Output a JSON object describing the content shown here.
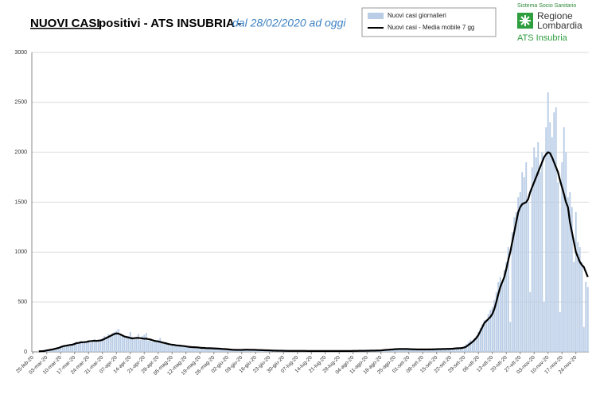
{
  "chart_data": {
    "type": "bar",
    "title": "NUOVI CASI",
    "title_rest": "positivi - ATS INSUBRIA -",
    "subtitle": "dal 28/02/2020 ad oggi",
    "logo": {
      "top": "Sistema Socio Sanitario",
      "line1": "Regione",
      "line2": "Lombardia",
      "bottom": "ATS Insubria"
    },
    "ylim": [
      0,
      3000
    ],
    "yticks": [
      0,
      500,
      1000,
      1500,
      2000,
      2500,
      3000
    ],
    "grid": true,
    "categories": [
      "25-feb-20",
      null,
      null,
      null,
      null,
      null,
      null,
      "03-mar-20",
      null,
      null,
      null,
      null,
      null,
      null,
      "10-mar-20",
      null,
      null,
      null,
      null,
      null,
      null,
      "17-mar-20",
      null,
      null,
      null,
      null,
      null,
      null,
      "24-mar-20",
      null,
      null,
      null,
      null,
      null,
      null,
      "31-mar-20",
      null,
      null,
      null,
      null,
      null,
      null,
      "07-apr-20",
      null,
      null,
      null,
      null,
      null,
      null,
      "14-apr-20",
      null,
      null,
      null,
      null,
      null,
      null,
      "21-apr-20",
      null,
      null,
      null,
      null,
      null,
      null,
      "28-apr-20",
      null,
      null,
      null,
      null,
      null,
      null,
      "05-mag-20",
      null,
      null,
      null,
      null,
      null,
      null,
      "12-mag-20",
      null,
      null,
      null,
      null,
      null,
      null,
      "19-mag-20",
      null,
      null,
      null,
      null,
      null,
      null,
      "26-mag-20",
      null,
      null,
      null,
      null,
      null,
      null,
      "02-giu-20",
      null,
      null,
      null,
      null,
      null,
      null,
      "09-giu-20",
      null,
      null,
      null,
      null,
      null,
      null,
      "16-giu-20",
      null,
      null,
      null,
      null,
      null,
      null,
      "23-giu-20",
      null,
      null,
      null,
      null,
      null,
      null,
      "30-giu-20",
      null,
      null,
      null,
      null,
      null,
      null,
      "07-lug-20",
      null,
      null,
      null,
      null,
      null,
      null,
      "14-lug-20",
      null,
      null,
      null,
      null,
      null,
      null,
      "21-lug-20",
      null,
      null,
      null,
      null,
      null,
      null,
      "28-lug-20",
      null,
      null,
      null,
      null,
      null,
      null,
      "04-ago-20",
      null,
      null,
      null,
      null,
      null,
      null,
      "11-ago-20",
      null,
      null,
      null,
      null,
      null,
      null,
      "18-ago-20",
      null,
      null,
      null,
      null,
      null,
      null,
      "25-ago-20",
      null,
      null,
      null,
      null,
      null,
      null,
      "01-set-20",
      null,
      null,
      null,
      null,
      null,
      null,
      "08-set-20",
      null,
      null,
      null,
      null,
      null,
      null,
      "15-set-20",
      null,
      null,
      null,
      null,
      null,
      null,
      "22-set-20",
      null,
      null,
      null,
      null,
      null,
      null,
      "29-set-20",
      null,
      null,
      null,
      null,
      null,
      null,
      "06-ott-20",
      null,
      null,
      null,
      null,
      null,
      null,
      "13-ott-20",
      null,
      null,
      null,
      null,
      null,
      null,
      "20-ott-20",
      null,
      null,
      null,
      null,
      null,
      null,
      "27-ott-20",
      null,
      null,
      null,
      null,
      null,
      null,
      "03-nov-20",
      null,
      null,
      null,
      null,
      null,
      null,
      "10-nov-20",
      null,
      null,
      null,
      null,
      null,
      null,
      "17-nov-20",
      null,
      null,
      null,
      null,
      null,
      null,
      "24-nov-20",
      null,
      null,
      null,
      null,
      null,
      null
    ],
    "series": [
      {
        "name": "Nuovi casi giornalieri",
        "type": "bar",
        "color": "#b9cde6",
        "values": [
          null,
          null,
          null,
          5,
          8,
          10,
          12,
          15,
          20,
          25,
          30,
          35,
          40,
          45,
          50,
          60,
          55,
          70,
          75,
          65,
          80,
          90,
          100,
          85,
          110,
          95,
          105,
          100,
          120,
          90,
          110,
          130,
          100,
          115,
          125,
          140,
          160,
          150,
          180,
          170,
          190,
          200,
          210,
          230,
          180,
          170,
          150,
          140,
          160,
          200,
          150,
          130,
          140,
          180,
          120,
          160,
          170,
          190,
          110,
          130,
          100,
          120,
          110,
          120,
          140,
          90,
          80,
          100,
          70,
          60,
          80,
          70,
          60,
          55,
          75,
          60,
          50,
          55,
          45,
          50,
          40,
          60,
          35,
          45,
          40,
          35,
          45,
          30,
          38,
          42,
          30,
          35,
          30,
          28,
          32,
          25,
          30,
          20,
          18,
          22,
          25,
          20,
          15,
          22,
          18,
          25,
          30,
          20,
          22,
          18,
          15,
          20,
          18,
          20,
          15,
          22,
          12,
          16,
          14,
          12,
          15,
          10,
          14,
          11,
          13,
          10,
          10,
          12,
          8,
          11,
          9,
          10,
          12,
          10,
          9,
          8,
          12,
          10,
          7,
          9,
          8,
          10,
          9,
          7,
          11,
          8,
          9,
          10,
          8,
          9,
          11,
          7,
          10,
          9,
          8,
          10,
          9,
          8,
          11,
          9,
          10,
          11,
          9,
          12,
          10,
          13,
          11,
          12,
          12,
          14,
          13,
          15,
          12,
          14,
          16,
          18,
          20,
          22,
          25,
          24,
          28,
          26,
          30,
          28,
          32,
          29,
          26,
          30,
          28,
          26,
          24,
          28,
          22,
          25,
          27,
          23,
          25,
          22,
          28,
          24,
          26,
          30,
          27,
          28,
          30,
          26,
          32,
          29,
          35,
          30,
          35,
          32,
          38,
          40,
          36,
          42,
          45,
          60,
          80,
          100,
          120,
          110,
          140,
          160,
          200,
          240,
          280,
          320,
          300,
          380,
          420,
          450,
          520,
          600,
          700,
          750,
          680,
          820,
          900,
          1050,
          300,
          1200,
          1350,
          1400,
          1550,
          1600,
          1800,
          1750,
          1900,
          1500,
          600,
          1850,
          2050,
          1950,
          2100,
          1800,
          2000,
          500,
          2250,
          2600,
          2300,
          2150,
          2400,
          2450,
          1700,
          400,
          1900,
          2250,
          2000,
          1550,
          1600,
          1450,
          900,
          1400,
          1100,
          1050,
          900,
          250,
          700,
          650
        ]
      },
      {
        "name": "Nuovi casi - Media mobile 7 gg",
        "type": "line",
        "color": "#000000",
        "values": [
          null,
          null,
          null,
          5,
          7,
          8,
          10,
          15,
          18,
          22,
          25,
          30,
          35,
          40,
          48,
          55,
          60,
          63,
          67,
          70,
          73,
          80,
          88,
          90,
          95,
          97,
          98,
          100,
          105,
          108,
          110,
          112,
          110,
          113,
          115,
          120,
          130,
          140,
          150,
          160,
          170,
          180,
          185,
          183,
          175,
          165,
          155,
          150,
          145,
          140,
          135,
          138,
          140,
          140,
          138,
          135,
          132,
          133,
          128,
          125,
          118,
          112,
          108,
          105,
          100,
          95,
          90,
          85,
          80,
          75,
          72,
          70,
          66,
          64,
          62,
          60,
          58,
          55,
          52,
          50,
          48,
          47,
          46,
          45,
          42,
          40,
          40,
          38,
          37,
          37,
          36,
          35,
          34,
          33,
          32,
          30,
          29,
          28,
          26,
          24,
          22,
          21,
          20,
          20,
          20,
          20,
          21,
          22,
          22,
          21,
          21,
          21,
          20,
          19,
          18,
          18,
          17,
          16,
          16,
          15,
          14,
          13,
          13,
          12,
          12,
          12,
          11,
          11,
          10,
          10,
          10,
          10,
          10,
          10,
          10,
          10,
          10,
          10,
          9,
          9,
          9,
          9,
          9,
          9,
          9,
          9,
          9,
          9,
          9,
          9,
          9,
          9,
          9,
          9,
          9,
          9,
          9,
          9,
          9,
          9,
          9,
          10,
          10,
          10,
          11,
          11,
          11,
          11,
          12,
          12,
          13,
          13,
          13,
          14,
          14,
          15,
          17,
          19,
          21,
          22,
          24,
          25,
          27,
          28,
          29,
          29,
          29,
          29,
          29,
          28,
          27,
          26,
          26,
          25,
          25,
          25,
          25,
          25,
          25,
          25,
          25,
          26,
          26,
          27,
          28,
          28,
          29,
          29,
          30,
          30,
          31,
          32,
          34,
          36,
          37,
          38,
          40,
          45,
          55,
          70,
          85,
          100,
          120,
          140,
          170,
          210,
          250,
          290,
          310,
          330,
          350,
          380,
          430,
          500,
          580,
          650,
          700,
          750,
          830,
          920,
          1000,
          1100,
          1200,
          1300,
          1400,
          1450,
          1480,
          1490,
          1500,
          1530,
          1600,
          1650,
          1700,
          1750,
          1800,
          1850,
          1900,
          1950,
          1980,
          2000,
          1990,
          1950,
          1900,
          1850,
          1800,
          1720,
          1650,
          1580,
          1500,
          1450,
          1300,
          1200,
          1100,
          1000,
          950,
          900,
          870,
          850,
          800,
          750
        ]
      }
    ]
  }
}
